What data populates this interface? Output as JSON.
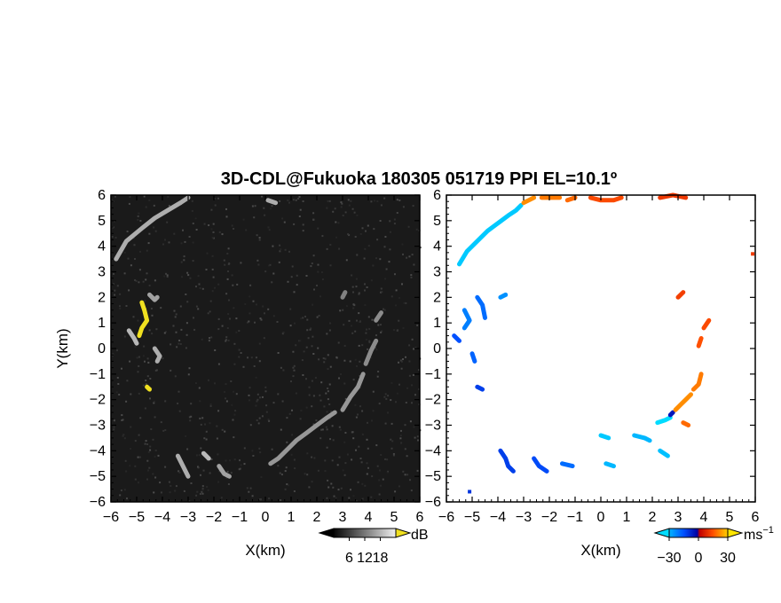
{
  "title": "3D-CDL@Fukuoka 180305 051719 PPI EL=10.1º",
  "left_panel": {
    "xlabel": "X(km)",
    "ylabel": "Y(km)",
    "colorbar": {
      "unit": "dB",
      "ticks": [
        "6",
        "12",
        "18"
      ],
      "range": [
        0,
        24
      ]
    }
  },
  "right_panel": {
    "xlabel": "X(km)",
    "colorbar": {
      "unit": "ms",
      "unit_sup": "−1",
      "ticks": [
        "−30",
        "0",
        "30"
      ],
      "range": [
        -30,
        30
      ]
    }
  },
  "chart_data": [
    {
      "type": "heatmap",
      "name": "",
      "xlim": [
        -6,
        6
      ],
      "ylim": [
        -6,
        6
      ],
      "xticks": [
        "−6",
        "−5",
        "−4",
        "−3",
        "−2",
        "−1",
        "0",
        "1",
        "2",
        "3",
        "4",
        "5",
        "6"
      ],
      "yticks": [
        "−6",
        "−5",
        "−4",
        "−3",
        "−2",
        "−1",
        "0",
        "1",
        "2",
        "3",
        "4",
        "5",
        "6"
      ],
      "background_color": "#1a1a1a",
      "features": [
        {
          "points": [
            [
              -5.8,
              3.5
            ],
            [
              -5.4,
              4.2
            ],
            [
              -4.8,
              4.7
            ],
            [
              -4.3,
              5.1
            ],
            [
              -3.8,
              5.4
            ],
            [
              -3.3,
              5.7
            ],
            [
              -3.0,
              5.9
            ]
          ],
          "value": 12
        },
        {
          "points": [
            [
              -4.8,
              1.8
            ],
            [
              -4.7,
              1.5
            ],
            [
              -4.6,
              1.1
            ],
            [
              -4.8,
              0.8
            ],
            [
              -4.9,
              0.5
            ]
          ],
          "value": 18
        },
        {
          "points": [
            [
              -4.5,
              2.1
            ],
            [
              -4.3,
              1.9
            ],
            [
              -4.2,
              2.0
            ]
          ],
          "value": 11
        },
        {
          "points": [
            [
              -5.3,
              0.7
            ],
            [
              -5.1,
              0.4
            ],
            [
              -5.0,
              0.2
            ]
          ],
          "value": 13
        },
        {
          "points": [
            [
              -4.3,
              0.0
            ],
            [
              -4.1,
              -0.3
            ],
            [
              -4.2,
              -0.5
            ]
          ],
          "value": 12
        },
        {
          "points": [
            [
              -4.6,
              -1.5
            ],
            [
              -4.5,
              -1.6
            ]
          ],
          "value": 18
        },
        {
          "points": [
            [
              -3.4,
              -4.2
            ],
            [
              -3.2,
              -4.6
            ],
            [
              -3.0,
              -5.0
            ]
          ],
          "value": 12
        },
        {
          "points": [
            [
              -2.4,
              -4.1
            ],
            [
              -2.2,
              -4.3
            ]
          ],
          "value": 13
        },
        {
          "points": [
            [
              -1.8,
              -4.6
            ],
            [
              -1.6,
              -4.9
            ],
            [
              -1.4,
              -5.0
            ]
          ],
          "value": 11
        },
        {
          "points": [
            [
              0.2,
              -4.5
            ],
            [
              0.5,
              -4.3
            ],
            [
              0.9,
              -3.9
            ],
            [
              1.2,
              -3.6
            ],
            [
              1.6,
              -3.3
            ],
            [
              2.0,
              -3.0
            ],
            [
              2.4,
              -2.7
            ],
            [
              2.7,
              -2.5
            ]
          ],
          "value": 10
        },
        {
          "points": [
            [
              3.0,
              -2.4
            ],
            [
              3.3,
              -1.9
            ],
            [
              3.6,
              -1.5
            ],
            [
              3.8,
              -1.0
            ]
          ],
          "value": 10
        },
        {
          "points": [
            [
              3.9,
              -0.6
            ],
            [
              4.1,
              -0.1
            ],
            [
              4.3,
              0.3
            ]
          ],
          "value": 9
        },
        {
          "points": [
            [
              4.3,
              1.1
            ],
            [
              4.5,
              1.4
            ]
          ],
          "value": 9
        },
        {
          "points": [
            [
              3.0,
              2.0
            ],
            [
              3.1,
              2.2
            ]
          ],
          "value": 8
        },
        {
          "points": [
            [
              0.1,
              5.8
            ],
            [
              0.4,
              5.7
            ]
          ],
          "value": 12
        }
      ]
    },
    {
      "type": "heatmap",
      "name": "",
      "xlim": [
        -6,
        6
      ],
      "ylim": [
        -6,
        6
      ],
      "xticks": [
        "−6",
        "−5",
        "−4",
        "−3",
        "−2",
        "−1",
        "0",
        "1",
        "2",
        "3",
        "4",
        "5",
        "6"
      ],
      "yticks": [
        "−6",
        "−5",
        "−4",
        "−3",
        "−2",
        "−1",
        "0",
        "1",
        "2",
        "3",
        "4",
        "5",
        "6"
      ],
      "background_color": "#ffffff",
      "features": [
        {
          "points": [
            [
              -5.5,
              3.3
            ],
            [
              -5.2,
              3.8
            ],
            [
              -4.8,
              4.2
            ],
            [
              -4.4,
              4.6
            ],
            [
              -4.0,
              4.9
            ],
            [
              -3.6,
              5.2
            ],
            [
              -3.3,
              5.4
            ],
            [
              -3.1,
              5.6
            ]
          ],
          "value": -28
        },
        {
          "points": [
            [
              -3.0,
              5.7
            ],
            [
              -2.8,
              5.8
            ],
            [
              -2.6,
              5.9
            ]
          ],
          "value": 22
        },
        {
          "points": [
            [
              -2.3,
              5.9
            ],
            [
              -1.9,
              5.9
            ],
            [
              -1.6,
              5.9
            ]
          ],
          "value": 20
        },
        {
          "points": [
            [
              -1.3,
              5.8
            ],
            [
              -1.0,
              5.9
            ]
          ],
          "value": 18
        },
        {
          "points": [
            [
              -0.4,
              5.9
            ],
            [
              0.0,
              5.8
            ],
            [
              0.5,
              5.8
            ],
            [
              0.8,
              5.9
            ]
          ],
          "value": 14
        },
        {
          "points": [
            [
              2.3,
              5.9
            ],
            [
              2.8,
              6.0
            ],
            [
              3.3,
              5.9
            ]
          ],
          "value": 11
        },
        {
          "points": [
            [
              5.9,
              3.7
            ]
          ],
          "value": 11
        },
        {
          "points": [
            [
              -5.3,
              1.5
            ],
            [
              -5.1,
              1.1
            ],
            [
              -5.3,
              0.8
            ]
          ],
          "value": -20
        },
        {
          "points": [
            [
              -4.8,
              2.0
            ],
            [
              -4.6,
              1.7
            ],
            [
              -4.5,
              1.2
            ]
          ],
          "value": -18
        },
        {
          "points": [
            [
              -3.9,
              2.0
            ],
            [
              -3.7,
              2.1
            ]
          ],
          "value": -22
        },
        {
          "points": [
            [
              -5.7,
              0.5
            ],
            [
              -5.5,
              0.3
            ]
          ],
          "value": -15
        },
        {
          "points": [
            [
              -5.0,
              -0.2
            ],
            [
              -4.9,
              -0.5
            ]
          ],
          "value": -17
        },
        {
          "points": [
            [
              -4.8,
              -1.5
            ],
            [
              -4.6,
              -1.6
            ]
          ],
          "value": -12
        },
        {
          "points": [
            [
              -3.9,
              -4.0
            ],
            [
              -3.7,
              -4.3
            ],
            [
              -3.6,
              -4.6
            ],
            [
              -3.4,
              -4.8
            ]
          ],
          "value": -12
        },
        {
          "points": [
            [
              -2.6,
              -4.3
            ],
            [
              -2.4,
              -4.6
            ],
            [
              -2.1,
              -4.8
            ]
          ],
          "value": -14
        },
        {
          "points": [
            [
              -1.5,
              -4.5
            ],
            [
              -1.1,
              -4.6
            ]
          ],
          "value": -18
        },
        {
          "points": [
            [
              -5.1,
              -5.6
            ]
          ],
          "value": -10
        },
        {
          "points": [
            [
              0.2,
              -4.5
            ],
            [
              0.5,
              -4.6
            ]
          ],
          "value": -26
        },
        {
          "points": [
            [
              1.3,
              -3.4
            ],
            [
              1.7,
              -3.5
            ],
            [
              1.9,
              -3.6
            ]
          ],
          "value": -26
        },
        {
          "points": [
            [
              0.0,
              -3.4
            ],
            [
              0.3,
              -3.5
            ]
          ],
          "value": -28
        },
        {
          "points": [
            [
              2.3,
              -4.0
            ],
            [
              2.6,
              -4.2
            ]
          ],
          "value": -27
        },
        {
          "points": [
            [
              2.2,
              -2.9
            ],
            [
              2.5,
              -2.8
            ],
            [
              2.7,
              -2.7
            ]
          ],
          "value": -30
        },
        {
          "points": [
            [
              2.7,
              -2.6
            ],
            [
              2.8,
              -2.5
            ]
          ],
          "value": -5
        },
        {
          "points": [
            [
              2.9,
              -2.4
            ],
            [
              3.1,
              -2.2
            ],
            [
              3.3,
              -2.0
            ],
            [
              3.5,
              -1.8
            ]
          ],
          "value": 22
        },
        {
          "points": [
            [
              3.6,
              -1.6
            ],
            [
              3.8,
              -1.4
            ],
            [
              3.9,
              -1.0
            ]
          ],
          "value": 20
        },
        {
          "points": [
            [
              4.0,
              0.8
            ],
            [
              4.2,
              1.1
            ]
          ],
          "value": 14
        },
        {
          "points": [
            [
              3.8,
              0.1
            ],
            [
              3.9,
              0.4
            ]
          ],
          "value": 15
        },
        {
          "points": [
            [
              3.0,
              2.0
            ],
            [
              3.2,
              2.2
            ]
          ],
          "value": 12
        },
        {
          "points": [
            [
              3.2,
              -2.9
            ],
            [
              3.4,
              -3.0
            ]
          ],
          "value": 18
        }
      ]
    }
  ]
}
